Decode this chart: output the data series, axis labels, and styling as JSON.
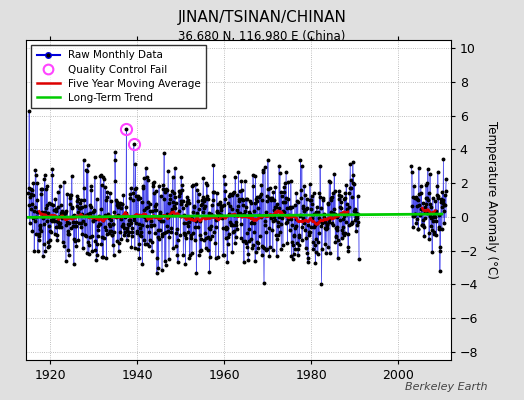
{
  "title": "JINAN/TSINAN/CHINAN",
  "subtitle": "36.680 N, 116.980 E (China)",
  "ylabel": "Temperature Anomaly (°C)",
  "credit": "Berkeley Earth",
  "ylim": [
    -8.5,
    10.5
  ],
  "yticks": [
    -8,
    -6,
    -4,
    -2,
    0,
    2,
    4,
    6,
    8,
    10
  ],
  "xlim": [
    1914.5,
    2012
  ],
  "xticks": [
    1920,
    1940,
    1960,
    1980,
    2000
  ],
  "start_year": 1915,
  "end_year": 1990,
  "start_year2": 2003,
  "end_year2": 2010,
  "bg_color": "#e0e0e0",
  "plot_bg_color": "#ffffff",
  "stem_color": "#8888ff",
  "line_color": "#0000dd",
  "ma_color": "#dd0000",
  "trend_color": "#00cc00",
  "qc_color": "#ff44ff",
  "marker_color": "#000000",
  "seed": 137,
  "qc_years": [
    1937.5,
    1939.2
  ],
  "qc_vals": [
    5.2,
    4.3
  ]
}
